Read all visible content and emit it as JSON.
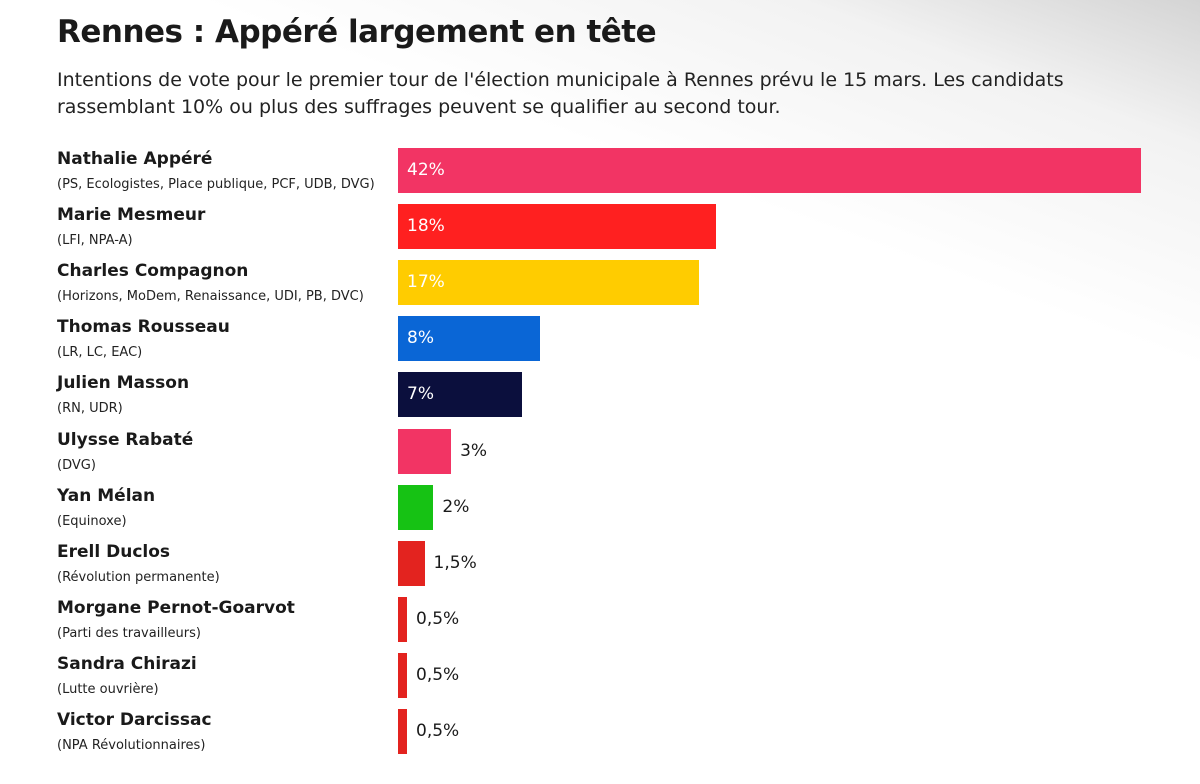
{
  "title": "Rennes : Appéré largement en tête",
  "subtitle": "Intentions de vote pour le premier tour de l'élection municipale à Rennes prévu le 15 mars. Les candidats rassemblant 10% ou plus des suffrages peuvent se qualifier au second tour.",
  "chart_data": {
    "type": "bar",
    "orientation": "horizontal",
    "title": "Rennes : Appéré largement en tête",
    "subtitle": "Intentions de vote pour le premier tour de l'élection municipale à Rennes prévu le 15 mars. Les candidats rassemblant 10% ou plus des suffrages peuvent se qualifier au second tour.",
    "categories": [
      "Nathalie Appéré",
      "Marie Mesmeur",
      "Charles Compagnon",
      "Thomas Rousseau",
      "Julien Masson",
      "Ulysse Rabaté",
      "Yan Mélan",
      "Erell Duclos",
      "Morgane Pernot-Goarvot",
      "Sandra Chirazi",
      "Victor Darcissac"
    ],
    "parties": [
      "(PS, Ecologistes, Place publique, PCF, UDB, DVG)",
      "(LFI, NPA-A)",
      "(Horizons, MoDem, Renaissance, UDI, PB, DVC)",
      "(LR, LC, EAC)",
      "(RN, UDR)",
      "(DVG)",
      "(Equinoxe)",
      "(Révolution permanente)",
      "(Parti des travailleurs)",
      "(Lutte ouvrière)",
      "(NPA Révolutionnaires)"
    ],
    "values": [
      42,
      18,
      17,
      8,
      7,
      3,
      2,
      1.5,
      0.5,
      0.5,
      0.5
    ],
    "labels": [
      "42%",
      "18%",
      "17%",
      "8%",
      "7%",
      "3%",
      "2%",
      "1,5%",
      "0,5%",
      "0,5%",
      "0,5%"
    ],
    "colors": [
      "#f23464",
      "#ff2020",
      "#ffcc00",
      "#0a66d6",
      "#0b0f3d",
      "#f23464",
      "#16c214",
      "#e3231f",
      "#e3231f",
      "#e3231f",
      "#e3231f"
    ],
    "xlim": [
      0,
      42
    ],
    "grid": false,
    "legend": "none"
  }
}
